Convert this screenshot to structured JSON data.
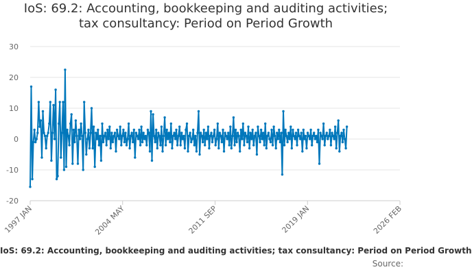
{
  "chart_data": {
    "type": "line",
    "title_lines": [
      "IoS: 69.2: Accounting, bookkeeping and auditing activities;",
      "tax consultancy: Period on Period Growth"
    ],
    "x_tick_labels": [
      "1997 JAN",
      "2004 MAY",
      "2011 SEP",
      "2019 JAN",
      "2026 FEB"
    ],
    "x_range": [
      1997.0,
      2026.083
    ],
    "y_ticks": [
      30,
      20,
      10,
      0,
      -10,
      -20
    ],
    "ylim": [
      -20,
      30
    ],
    "grid": true,
    "legend_text": "IoS: 69.2: Accounting, bookkeeping and auditing activities; tax consultancy: Period on Period Growth",
    "source_text": "Source:",
    "series": [
      {
        "name": "IoS: 69.2: Accounting, bookkeeping and auditing activities; tax consultancy: Period on Period Growth",
        "color": "#0077bb",
        "start": 1997.0,
        "step": 0.0833,
        "values": [
          -15.5,
          17,
          -13,
          -1,
          3,
          -1,
          0,
          2,
          12,
          4,
          6,
          -6,
          9,
          2,
          1,
          -3,
          1,
          2,
          5,
          12,
          -7,
          2,
          11,
          0,
          16,
          -13,
          -12,
          5,
          12,
          -6,
          2,
          12,
          -10,
          22.5,
          -9,
          3,
          1,
          -2,
          5,
          8,
          -8,
          3,
          -1,
          6,
          1,
          -8,
          3,
          0,
          5,
          1,
          -10,
          12,
          2,
          -5,
          0,
          3,
          -3,
          2,
          10,
          -3,
          4,
          -9,
          2,
          0,
          3,
          -2,
          1,
          -7,
          5,
          -1,
          1,
          2,
          -2,
          3,
          0,
          4,
          -3,
          2,
          -1,
          1,
          2,
          -4,
          3,
          1,
          0,
          4,
          -2,
          1,
          3,
          -1,
          2,
          -2,
          0,
          5,
          -3,
          1,
          2,
          -1,
          3,
          -6,
          2,
          1,
          0,
          3,
          -2,
          4,
          -1,
          2,
          0,
          1,
          -2,
          3,
          2,
          -4,
          9,
          -7,
          8,
          1,
          -1,
          3,
          -3,
          2,
          1,
          -2,
          4,
          -4,
          1,
          7,
          -2,
          3,
          0,
          2,
          -1,
          5,
          -3,
          1,
          2,
          0,
          3,
          -2,
          1,
          4,
          -2,
          2,
          0,
          1,
          -3,
          3,
          5,
          -4,
          1,
          2,
          -1,
          0,
          3,
          -2,
          1,
          -4,
          2,
          9,
          -5,
          2,
          1,
          -1,
          3,
          -2,
          2,
          0,
          4,
          -3,
          1,
          2,
          -1,
          1,
          3,
          -2,
          0,
          5,
          -3,
          2,
          1,
          -1,
          3,
          -4,
          2,
          1,
          0,
          2,
          -2,
          4,
          -3,
          1,
          7,
          -2,
          3,
          -1,
          2,
          1,
          -4,
          3,
          0,
          5,
          -2,
          2,
          1,
          -1,
          4,
          -3,
          2,
          0,
          3,
          -2,
          1,
          2,
          -5,
          4,
          1,
          -1,
          3,
          0,
          2,
          -2,
          5,
          -3,
          1,
          2,
          0,
          -1,
          3,
          -2,
          4,
          1,
          -3,
          2,
          0,
          3,
          -1,
          2,
          -11.5,
          9,
          -2,
          3,
          1,
          -1,
          2,
          0,
          4,
          -3,
          3,
          1,
          0,
          2,
          -2,
          3,
          1,
          0,
          2,
          -4,
          3,
          0,
          1,
          -3,
          2,
          1,
          0,
          3,
          -2,
          1,
          2,
          0,
          1,
          -1,
          3,
          -8,
          2,
          1,
          0,
          5,
          -2,
          1,
          2,
          0,
          1,
          3,
          -2,
          2,
          1,
          0,
          4,
          -3,
          2,
          6,
          -4,
          1,
          2,
          -1,
          3,
          0,
          -3,
          4
        ]
      }
    ]
  }
}
